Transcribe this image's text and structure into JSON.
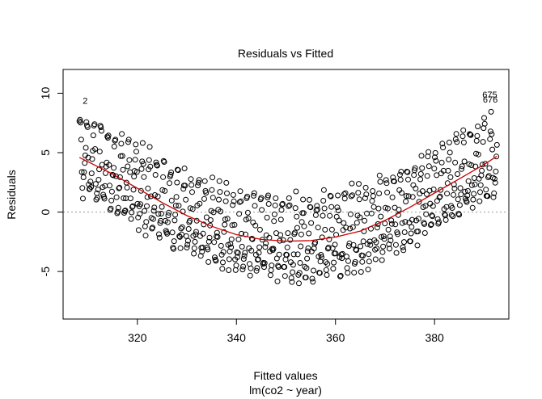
{
  "chart_data": {
    "type": "scatter",
    "title": "Residuals vs Fitted",
    "xlabel": "Fitted values",
    "subtitle": "lm(co2 ~ year)",
    "ylabel": "Residuals",
    "xlim": [
      305,
      395
    ],
    "ylim": [
      -9,
      12
    ],
    "x_ticks": [
      320,
      340,
      360,
      380
    ],
    "y_ticks": [
      -5,
      0,
      5,
      10
    ],
    "grid": false,
    "reference_line_y": 0,
    "marker": "open-circle",
    "point_color": "#000000",
    "smooth_color": "#cc0000",
    "reference_line_color": "#999999",
    "n_points": 720,
    "fitted_range": [
      308.3,
      392.6
    ],
    "smooth_curve": {
      "x": [
        308.3,
        315,
        320,
        325,
        330,
        335,
        340,
        345,
        350,
        355,
        360,
        365,
        370,
        375,
        380,
        385,
        390,
        392.6
      ],
      "y": [
        4.6,
        3.2,
        2.0,
        0.8,
        -0.3,
        -1.2,
        -1.9,
        -2.3,
        -2.45,
        -2.4,
        -2.1,
        -1.6,
        -0.7,
        0.4,
        1.6,
        2.8,
        4.0,
        4.7
      ]
    },
    "annotations": [
      {
        "label": "2",
        "x": 308.3,
        "y": 9.4
      },
      {
        "label": "675",
        "x": 392.0,
        "y": 9.9
      },
      {
        "label": "676",
        "x": 392.1,
        "y": 9.5
      }
    ]
  }
}
